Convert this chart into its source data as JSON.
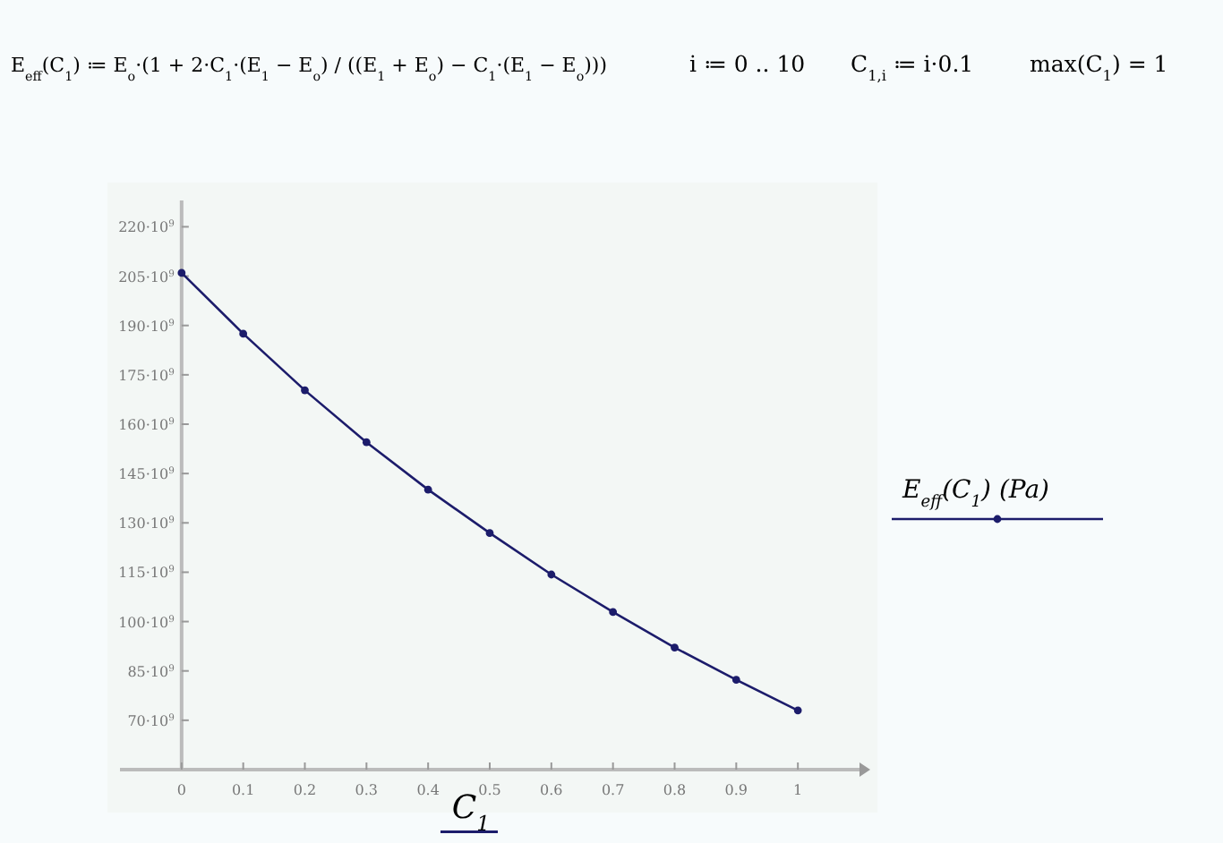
{
  "chart_data": {
    "type": "line",
    "xlabel": "C$_{1}$",
    "annotations": [
      "E$_{eff}$(C$_{1}$) ≔ E$_{o}$·(1 + 2·C$_{1}$·(E$_{1}$ − E$_{o}$) / ((E$_{1}$ + E$_{o}$) − C$_{1}$·(E$_{1}$ − E$_{o}$)))",
      "i ≔ 0 .. 10",
      "C$_{1,i}$ ≔ i·0.1",
      "max(C$_{1}$) = 1"
    ],
    "x": [
      0,
      0.1,
      0.2,
      0.3,
      0.4,
      0.5,
      0.6,
      0.7,
      0.8,
      0.9,
      1
    ],
    "series": [
      {
        "name": "E$_{eff}$(C$_{1}$) (Pa)",
        "color": "#1c1c6b",
        "values": [
          206000000000,
          187500000000,
          170300000000,
          154500000000,
          140100000000,
          126900000000,
          114300000000,
          102900000000,
          92100000000,
          82300000000,
          73000000000
        ]
      }
    ],
    "xlim": [
      -0.1,
      1.1
    ],
    "ylim": [
      55000000000,
      228000000000
    ],
    "xticks": [
      0,
      0.1,
      0.2,
      0.3,
      0.4,
      0.5,
      0.6,
      0.7,
      0.8,
      0.9,
      1
    ],
    "yticks": [
      {
        "value": 70000000000,
        "label": "70·10$^{9}$"
      },
      {
        "value": 85000000000,
        "label": "85·10$^{9}$"
      },
      {
        "value": 100000000000,
        "label": "100·10$^{9}$"
      },
      {
        "value": 115000000000,
        "label": "115·10$^{9}$"
      },
      {
        "value": 130000000000,
        "label": "130·10$^{9}$"
      },
      {
        "value": 145000000000,
        "label": "145·10$^{9}$"
      },
      {
        "value": 160000000000,
        "label": "160·10$^{9}$"
      },
      {
        "value": 175000000000,
        "label": "175·10$^{9}$"
      },
      {
        "value": 190000000000,
        "label": "190·10$^{9}$"
      },
      {
        "value": 205000000000,
        "label": "205·10$^{9}$"
      },
      {
        "value": 220000000000,
        "label": "220·10$^{9}$"
      }
    ],
    "grid": false,
    "legend": "right",
    "marker": "circle",
    "line_style": "solid"
  }
}
